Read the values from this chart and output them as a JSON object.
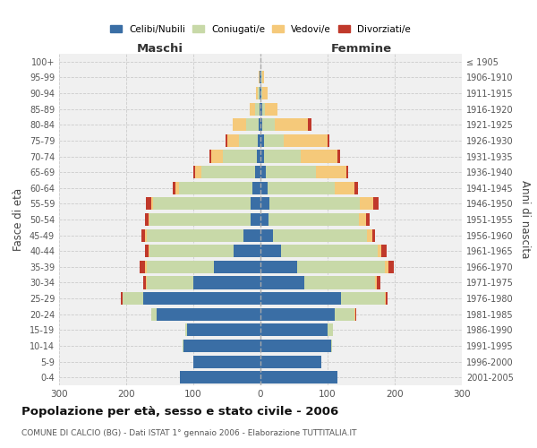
{
  "age_groups": [
    "0-4",
    "5-9",
    "10-14",
    "15-19",
    "20-24",
    "25-29",
    "30-34",
    "35-39",
    "40-44",
    "45-49",
    "50-54",
    "55-59",
    "60-64",
    "65-69",
    "70-74",
    "75-79",
    "80-84",
    "85-89",
    "90-94",
    "95-99",
    "100+"
  ],
  "birth_years": [
    "2001-2005",
    "1996-2000",
    "1991-1995",
    "1986-1990",
    "1981-1985",
    "1976-1980",
    "1971-1975",
    "1966-1970",
    "1961-1965",
    "1956-1960",
    "1951-1955",
    "1946-1950",
    "1941-1945",
    "1936-1940",
    "1931-1935",
    "1926-1930",
    "1921-1925",
    "1916-1920",
    "1911-1915",
    "1906-1910",
    "≤ 1905"
  ],
  "males": {
    "celibi": [
      120,
      100,
      115,
      110,
      155,
      175,
      100,
      70,
      40,
      25,
      15,
      15,
      12,
      8,
      6,
      4,
      3,
      2,
      1,
      1,
      0
    ],
    "coniugati": [
      0,
      0,
      1,
      2,
      8,
      30,
      70,
      100,
      125,
      145,
      150,
      145,
      110,
      80,
      50,
      28,
      18,
      6,
      3,
      1,
      0
    ],
    "vedovi": [
      0,
      0,
      0,
      0,
      0,
      1,
      1,
      2,
      2,
      2,
      2,
      3,
      5,
      10,
      18,
      18,
      20,
      8,
      3,
      1,
      0
    ],
    "divorziati": [
      0,
      0,
      0,
      0,
      0,
      2,
      4,
      8,
      5,
      5,
      5,
      8,
      4,
      2,
      2,
      2,
      0,
      0,
      0,
      0,
      0
    ]
  },
  "females": {
    "nubili": [
      115,
      90,
      105,
      100,
      110,
      120,
      65,
      55,
      30,
      18,
      12,
      13,
      10,
      8,
      5,
      5,
      3,
      2,
      1,
      1,
      0
    ],
    "coniugate": [
      0,
      0,
      2,
      8,
      30,
      65,
      105,
      130,
      145,
      140,
      135,
      135,
      100,
      75,
      55,
      30,
      18,
      5,
      2,
      1,
      0
    ],
    "vedove": [
      0,
      0,
      0,
      0,
      1,
      2,
      3,
      5,
      5,
      8,
      10,
      20,
      30,
      45,
      55,
      65,
      50,
      18,
      8,
      3,
      0
    ],
    "divorziate": [
      0,
      0,
      0,
      0,
      1,
      2,
      5,
      8,
      8,
      5,
      5,
      8,
      5,
      2,
      3,
      2,
      5,
      0,
      0,
      0,
      0
    ]
  },
  "colors": {
    "celibi": "#3A6EA5",
    "coniugati": "#C8D9A8",
    "vedovi": "#F5C97A",
    "divorziati": "#C0392B"
  },
  "title": "Popolazione per età, sesso e stato civile - 2006",
  "subtitle": "COMUNE DI CALCIO (BG) - Dati ISTAT 1° gennaio 2006 - Elaborazione TUTTITALIA.IT",
  "xlabel_left": "Maschi",
  "xlabel_right": "Femmine",
  "ylabel_left": "Fasce di età",
  "ylabel_right": "Anni di nascita",
  "xlim": 300,
  "bg_color": "#FFFFFF",
  "plot_bg": "#F0F0F0",
  "grid_color": "#CCCCCC"
}
